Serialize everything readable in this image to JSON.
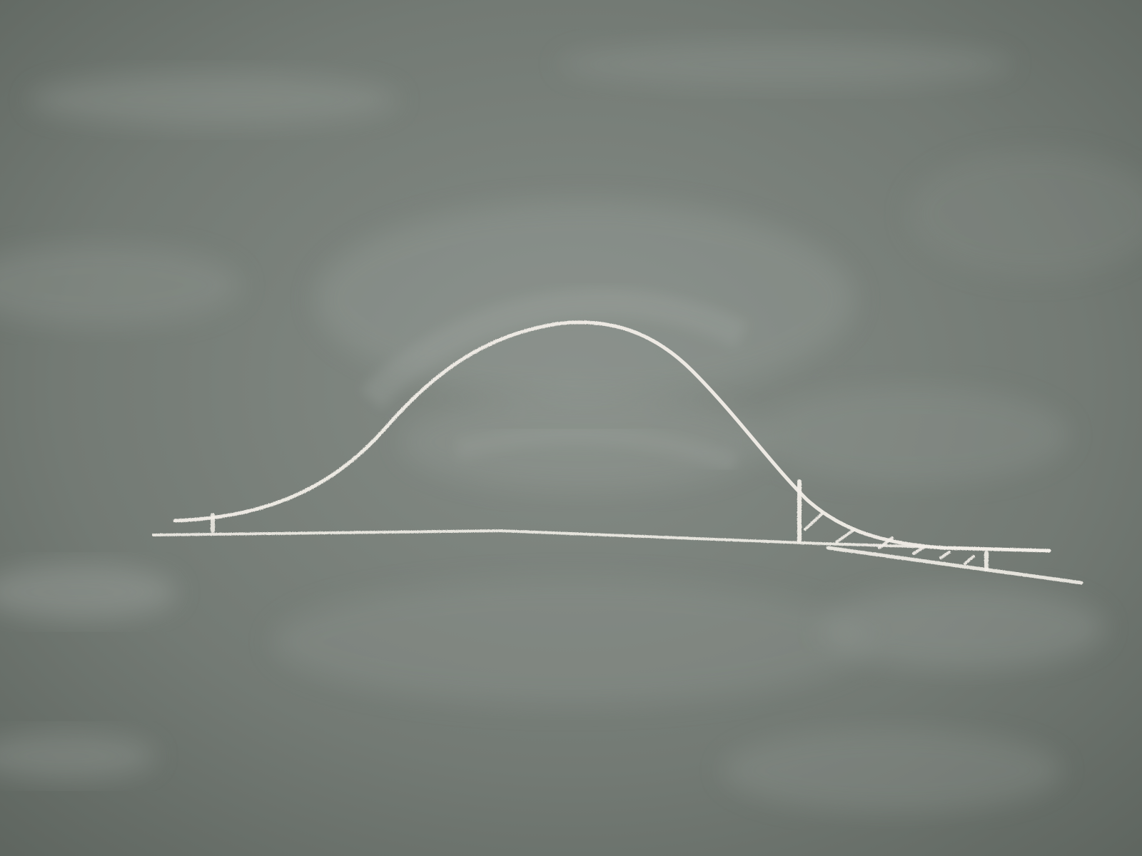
{
  "scene": {
    "subject": "chalkboard",
    "colors": {
      "board_base": "#6f7670",
      "board_light": "#8a908b",
      "board_dark": "#5f6660",
      "chalk": "#f2eee8",
      "smudge": "#c9ccc8"
    }
  }
}
